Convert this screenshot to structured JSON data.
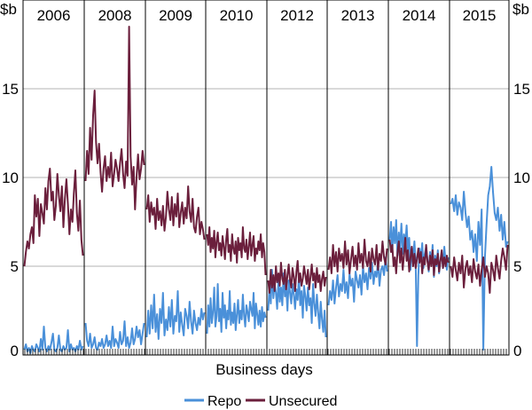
{
  "chart_data": {
    "type": "line",
    "title": "",
    "xlabel": "Business days",
    "ylabel_left": "$b",
    "ylabel_right": "$b",
    "ylim": [
      0,
      20
    ],
    "yticks": [
      0,
      5,
      10,
      15
    ],
    "grid": true,
    "legend_position": "bottom",
    "panels": [
      "2006",
      "2008",
      "2009",
      "2010",
      "2012",
      "2013",
      "2014",
      "2015"
    ],
    "series": [
      {
        "name": "Repo",
        "color": "#4a90d9",
        "panels": [
          [
            0.3,
            0.6,
            0.2,
            0.4,
            0.1,
            0.5,
            0.3,
            0.2,
            0.6,
            0.4,
            0.2,
            0.9,
            0.3,
            1.6,
            0.4,
            0.2,
            0.5,
            0.3,
            0.7,
            1.2,
            0.3,
            0.2,
            0.4,
            1.1,
            0.3,
            0.2,
            0.5,
            0.3,
            0.4,
            1.4,
            0.2,
            0.6,
            0.3,
            0.4,
            0.2,
            0.5,
            0.3,
            0.8,
            0.3,
            0.5
          ],
          [
            1.8,
            0.8,
            0.5,
            1.2,
            0.4,
            0.6,
            1.0,
            0.4,
            0.3,
            0.7,
            0.5,
            0.9,
            0.4,
            0.6,
            1.1,
            0.5,
            0.8,
            0.4,
            1.6,
            0.5,
            0.9,
            0.7,
            0.4,
            1.3,
            0.6,
            0.8,
            1.9,
            0.5,
            1.0,
            0.4,
            0.7,
            1.5,
            0.6,
            0.9,
            1.6,
            1.0,
            1.4,
            0.6,
            1.2,
            1.8
          ],
          [
            1.0,
            2.5,
            1.2,
            2.8,
            1.5,
            3.4,
            1.3,
            2.3,
            0.9,
            2.6,
            1.8,
            3.5,
            1.1,
            2.0,
            1.4,
            2.7,
            1.6,
            3.1,
            1.2,
            2.2,
            1.9,
            3.6,
            1.3,
            2.4,
            1.7,
            1.1,
            2.6,
            2.2,
            1.5,
            3.0,
            1.9,
            1.2,
            2.5,
            1.8,
            1.4,
            2.1,
            1.7,
            2.6,
            2.0,
            2.4
          ],
          [
            1.2,
            2.8,
            1.6,
            3.2,
            1.8,
            2.4,
            3.8,
            1.6,
            2.2,
            4.0,
            1.9,
            2.6,
            1.3,
            3.5,
            2.1,
            2.8,
            1.5,
            2.5,
            2.0,
            3.6,
            1.7,
            2.4,
            1.8,
            2.9,
            1.4,
            2.3,
            3.1,
            1.8,
            2.5,
            2.0,
            3.4,
            2.2,
            1.6,
            2.8,
            2.4,
            1.9,
            3.0,
            2.6,
            2.2,
            3.5,
            1.5,
            2.9,
            2.3,
            1.7,
            2.5,
            1.6,
            2.7,
            1.9,
            2.4,
            2.1
          ],
          [
            2.5,
            3.8,
            2.9,
            4.8,
            3.2,
            4.0,
            3.5,
            2.6,
            4.4,
            3.0,
            3.8,
            2.8,
            4.6,
            3.3,
            3.9,
            2.5,
            4.2,
            3.5,
            2.9,
            4.0,
            3.4,
            2.6,
            3.7,
            3.1,
            4.5,
            2.8,
            3.6,
            2.1,
            3.9,
            3.3,
            2.5,
            3.8,
            2.8,
            3.2,
            1.8,
            4.0,
            2.9,
            2.2,
            3.4,
            2.4,
            1.5,
            3.0,
            2.0,
            1.3,
            2.5,
            1.0
          ],
          [
            2.8,
            3.6,
            3.1,
            4.2,
            2.9,
            3.8,
            4.5,
            3.3,
            4.0,
            3.6,
            4.8,
            3.5,
            4.1,
            3.2,
            4.6,
            3.9,
            4.3,
            3.0,
            4.7,
            4.2,
            3.8,
            4.5,
            3.4,
            5.0,
            4.1,
            4.6,
            3.7,
            4.9,
            4.3,
            5.2,
            4.0,
            4.7,
            4.4,
            5.3,
            3.9,
            4.8,
            5.0,
            4.5,
            5.5,
            4.7
          ],
          [
            6.5,
            7.5,
            5.8,
            7.2,
            6.3,
            7.6,
            5.6,
            6.9,
            6.0,
            7.4,
            5.7,
            6.8,
            6.2,
            7.3,
            5.9,
            6.6,
            4.8,
            6.1,
            5.5,
            6.4,
            5.2,
            0.5,
            4.5,
            6.0,
            5.3,
            6.3,
            4.9,
            5.7,
            6.1,
            5.4,
            4.7,
            5.8,
            5.1,
            6.2,
            4.4,
            5.6,
            5.0,
            5.9,
            4.6,
            5.3,
            5.7,
            4.9,
            6.1,
            5.2,
            4.8,
            5.5
          ],
          [
            8.5,
            8.8,
            8.1,
            9.0,
            7.9,
            8.6,
            8.3,
            7.6,
            9.2,
            8.0,
            7.2,
            7.8,
            6.5,
            7.0,
            5.8,
            6.8,
            5.3,
            7.5,
            6.2,
            8.2,
            0.3,
            5.5,
            7.3,
            9.0,
            9.5,
            10.6,
            9.2,
            8.0,
            7.6,
            8.3,
            7.0,
            7.9,
            6.5,
            7.5,
            6.1,
            6.4
          ]
        ]
      },
      {
        "name": "Unsecured",
        "color": "#6b1f3c",
        "panels": [
          [
            5.0,
            5.8,
            6.4,
            6.0,
            6.8,
            7.2,
            6.3,
            9.0,
            7.8,
            8.8,
            6.7,
            8.5,
            8.0,
            7.4,
            9.4,
            8.2,
            9.8,
            10.5,
            8.7,
            9.2,
            7.6,
            8.4,
            10.2,
            9.0,
            8.1,
            9.5,
            7.2,
            8.8,
            9.9,
            8.5,
            6.8,
            8.2,
            7.5,
            9.1,
            10.4,
            8.0,
            7.0,
            8.7,
            6.5,
            5.6
          ],
          [
            9.8,
            11.5,
            10.2,
            12.8,
            11.0,
            13.5,
            14.9,
            12.0,
            10.8,
            11.9,
            10.3,
            9.2,
            10.5,
            11.2,
            9.8,
            10.6,
            10.0,
            11.4,
            9.5,
            10.2,
            11.0,
            10.5,
            9.8,
            10.8,
            11.6,
            10.2,
            9.4,
            10.9,
            10.1,
            18.5,
            11.2,
            9.6,
            10.6,
            8.2,
            10.0,
            11.3,
            9.9,
            10.5,
            11.5,
            10.7
          ],
          [
            8.2,
            9.0,
            7.5,
            8.6,
            7.9,
            8.3,
            7.1,
            8.8,
            7.6,
            8.1,
            7.3,
            8.4,
            7.0,
            7.8,
            9.2,
            8.2,
            7.6,
            8.9,
            7.3,
            8.5,
            7.8,
            9.1,
            7.2,
            8.0,
            8.6,
            7.4,
            8.3,
            7.7,
            9.5,
            8.1,
            7.5,
            8.8,
            7.2,
            6.9,
            7.8,
            8.3,
            6.8,
            7.5,
            7.1,
            6.5
          ],
          [
            6.8,
            6.2,
            7.2,
            5.8,
            6.6,
            6.0,
            7.0,
            5.5,
            6.4,
            6.9,
            5.9,
            6.3,
            5.6,
            6.7,
            6.1,
            5.4,
            6.5,
            7.1,
            5.8,
            6.2,
            5.3,
            6.8,
            6.0,
            5.7,
            6.4,
            5.2,
            6.6,
            5.9,
            6.3,
            5.5,
            7.2,
            6.0,
            5.8,
            6.5,
            5.4,
            6.1,
            6.9,
            5.6,
            6.2,
            6.7,
            5.3,
            6.0,
            5.7,
            6.4,
            5.9,
            6.8,
            5.5,
            6.3,
            5.8,
            4.5
          ],
          [
            4.2,
            3.5,
            4.8,
            3.8,
            4.5,
            3.6,
            5.0,
            4.1,
            4.6,
            3.9,
            5.2,
            4.3,
            4.0,
            4.8,
            3.7,
            4.5,
            5.1,
            4.2,
            3.8,
            4.9,
            4.4,
            3.6,
            4.7,
            5.3,
            4.1,
            4.6,
            3.9,
            4.3,
            5.0,
            4.5,
            4.0,
            4.8,
            3.7,
            4.4,
            5.1,
            4.2,
            4.6,
            3.8,
            4.9,
            4.1,
            4.5,
            3.6,
            4.3,
            4.7,
            3.9,
            4.4
          ],
          [
            4.8,
            5.5,
            4.6,
            6.2,
            5.0,
            5.8,
            4.7,
            6.0,
            5.3,
            5.7,
            4.9,
            6.4,
            5.1,
            5.9,
            4.6,
            5.4,
            6.1,
            5.0,
            5.6,
            4.8,
            6.3,
            5.2,
            5.7,
            4.9,
            6.5,
            5.3,
            5.0,
            5.8,
            4.7,
            6.0,
            5.4,
            5.1,
            6.2,
            4.8,
            5.7,
            5.3,
            6.4,
            5.5,
            5.1,
            6.0
          ],
          [
            6.5,
            5.8,
            6.2,
            5.0,
            5.5,
            4.6,
            5.8,
            6.4,
            5.2,
            6.0,
            4.8,
            5.6,
            6.6,
            5.3,
            5.9,
            4.7,
            5.5,
            6.1,
            5.0,
            5.7,
            4.9,
            5.4,
            6.0,
            5.2,
            5.8,
            4.6,
            5.5,
            5.1,
            6.2,
            5.3,
            4.8,
            5.6,
            5.0,
            5.9,
            4.5,
            5.4,
            5.1,
            5.7,
            4.7,
            5.3,
            5.9,
            4.9,
            5.5,
            5.0,
            5.6,
            5.2
          ],
          [
            5.0,
            4.4,
            5.5,
            4.8,
            4.2,
            5.2,
            4.6,
            5.6,
            3.8,
            4.9,
            5.3,
            4.5,
            5.0,
            4.1,
            5.4,
            4.7,
            4.3,
            5.1,
            3.9,
            4.8,
            5.5,
            4.4,
            5.0,
            4.6,
            3.5,
            5.2,
            4.8,
            4.2,
            5.6,
            4.9,
            4.3,
            5.3,
            6.0,
            5.5,
            4.8,
            6.2
          ]
        ]
      }
    ]
  }
}
